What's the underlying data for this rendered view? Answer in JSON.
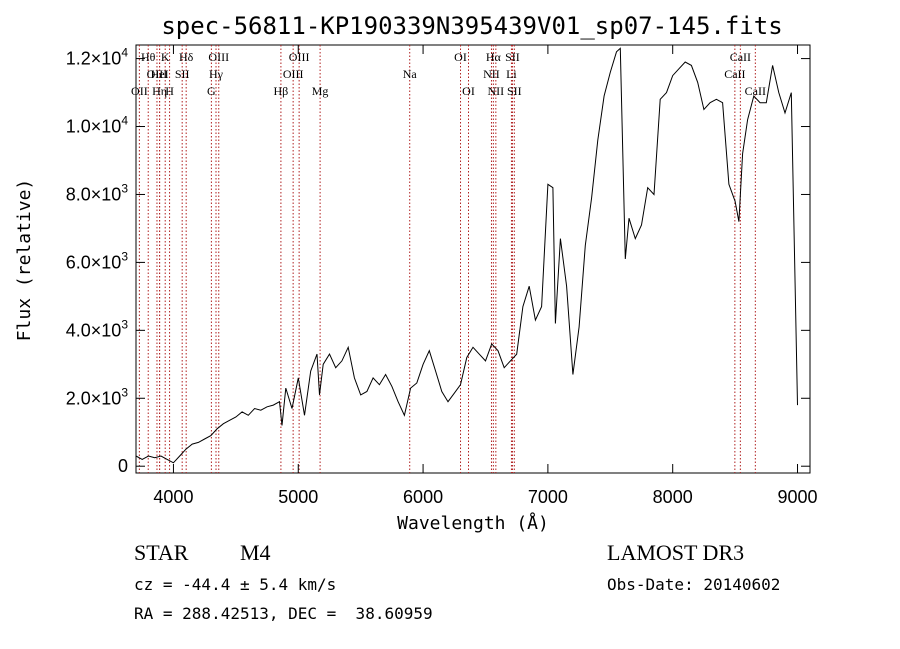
{
  "chart_data": {
    "type": "line",
    "title": "spec-56811-KP190339N395439V01_sp07-145.fits",
    "xlabel": "Wavelength (Å)",
    "ylabel": "Flux (relative)",
    "xlim": [
      3700,
      9100
    ],
    "ylim": [
      -200,
      12400
    ],
    "x_ticks": [
      4000,
      5000,
      6000,
      7000,
      8000,
      9000
    ],
    "y_ticks": [
      {
        "value": 0,
        "label": "0",
        "exp": ""
      },
      {
        "value": 2000,
        "label": "2.0×10",
        "exp": "3"
      },
      {
        "value": 4000,
        "label": "4.0×10",
        "exp": "3"
      },
      {
        "value": 6000,
        "label": "6.0×10",
        "exp": "3"
      },
      {
        "value": 8000,
        "label": "8.0×10",
        "exp": "3"
      },
      {
        "value": 10000,
        "label": "1.0×10",
        "exp": "4"
      },
      {
        "value": 12000,
        "label": "1.2×10",
        "exp": "4"
      }
    ],
    "spectrum": {
      "x": [
        3700,
        3750,
        3800,
        3850,
        3900,
        3950,
        4000,
        4050,
        4100,
        4150,
        4200,
        4250,
        4300,
        4350,
        4400,
        4450,
        4500,
        4550,
        4600,
        4650,
        4700,
        4750,
        4800,
        4850,
        4870,
        4900,
        4950,
        5000,
        5050,
        5100,
        5150,
        5170,
        5200,
        5250,
        5300,
        5350,
        5400,
        5450,
        5500,
        5550,
        5600,
        5650,
        5700,
        5750,
        5800,
        5850,
        5900,
        5950,
        6000,
        6050,
        6100,
        6150,
        6200,
        6250,
        6300,
        6350,
        6400,
        6450,
        6500,
        6550,
        6600,
        6650,
        6700,
        6750,
        6800,
        6850,
        6900,
        6950,
        7000,
        7040,
        7060,
        7100,
        7150,
        7200,
        7250,
        7300,
        7350,
        7400,
        7450,
        7500,
        7550,
        7580,
        7620,
        7650,
        7700,
        7750,
        7800,
        7850,
        7900,
        7950,
        8000,
        8050,
        8100,
        8150,
        8200,
        8250,
        8300,
        8350,
        8400,
        8450,
        8500,
        8530,
        8560,
        8600,
        8650,
        8700,
        8750,
        8800,
        8850,
        8900,
        8950,
        9000
      ],
      "y": [
        300,
        200,
        300,
        250,
        300,
        200,
        100,
        300,
        500,
        650,
        700,
        800,
        900,
        1100,
        1250,
        1350,
        1450,
        1600,
        1500,
        1700,
        1650,
        1750,
        1800,
        1900,
        1200,
        2300,
        1700,
        2600,
        1500,
        2800,
        3300,
        2100,
        3000,
        3300,
        2900,
        3100,
        3500,
        2600,
        2100,
        2200,
        2600,
        2400,
        2700,
        2350,
        1900,
        1500,
        2300,
        2450,
        3000,
        3400,
        2800,
        2200,
        1900,
        2150,
        2400,
        3200,
        3500,
        3300,
        3100,
        3600,
        3400,
        2900,
        3100,
        3300,
        4700,
        5300,
        4300,
        4700,
        8300,
        8200,
        4200,
        6700,
        5300,
        2700,
        4100,
        6500,
        7900,
        9600,
        10900,
        11600,
        12200,
        12300,
        6100,
        7300,
        6700,
        7100,
        8200,
        8000,
        10800,
        11000,
        11500,
        11700,
        11900,
        11800,
        11300,
        10500,
        10700,
        10800,
        10700,
        8300,
        7800,
        7200,
        9200,
        10200,
        10900,
        10700,
        10700,
        11800,
        11000,
        10400,
        11000,
        1800
      ]
    },
    "lines": [
      {
        "name": "OII",
        "wave": 3727,
        "row": 2
      },
      {
        "name": "Hθ",
        "wave": 3798,
        "row": 0
      },
      {
        "name": "OIII",
        "wave": 3868,
        "row": 1
      },
      {
        "name": "Hη",
        "wave": 3889,
        "row": 2
      },
      {
        "name": "HeI",
        "wave": 3889,
        "row": 1
      },
      {
        "name": "K",
        "wave": 3934,
        "row": 0
      },
      {
        "name": "H",
        "wave": 3969,
        "row": 2
      },
      {
        "name": "SII",
        "wave": 4070,
        "row": 1
      },
      {
        "name": "Hδ",
        "wave": 4102,
        "row": 0
      },
      {
        "name": "G",
        "wave": 4304,
        "row": 2
      },
      {
        "name": "Hγ",
        "wave": 4341,
        "row": 1
      },
      {
        "name": "OIII",
        "wave": 4363,
        "row": 0
      },
      {
        "name": "Hβ",
        "wave": 4861,
        "row": 2
      },
      {
        "name": "OIII",
        "wave": 4959,
        "row": 1
      },
      {
        "name": "OIII",
        "wave": 5007,
        "row": 0
      },
      {
        "name": "Mg",
        "wave": 5175,
        "row": 2
      },
      {
        "name": "Na",
        "wave": 5893,
        "row": 1
      },
      {
        "name": "OI",
        "wave": 6300,
        "row": 0
      },
      {
        "name": "OI",
        "wave": 6364,
        "row": 2
      },
      {
        "name": "NII",
        "wave": 6548,
        "row": 1
      },
      {
        "name": "Hα",
        "wave": 6563,
        "row": 0
      },
      {
        "name": "NII",
        "wave": 6583,
        "row": 2
      },
      {
        "name": "Li",
        "wave": 6708,
        "row": 1
      },
      {
        "name": "SII",
        "wave": 6716,
        "row": 0
      },
      {
        "name": "SII",
        "wave": 6731,
        "row": 2
      },
      {
        "name": "CaII",
        "wave": 8498,
        "row": 1
      },
      {
        "name": "CaII",
        "wave": 8542,
        "row": 0
      },
      {
        "name": "CaII",
        "wave": 8662,
        "row": 2
      }
    ]
  },
  "info": {
    "object_class": "STAR",
    "subclass": "M4",
    "survey": "LAMOST DR3",
    "redshift": "cz = -44.4 ± 5.4 km/s",
    "obs_date": "Obs-Date: 20140602",
    "coords": "RA = 288.42513, DEC =  38.60959"
  }
}
